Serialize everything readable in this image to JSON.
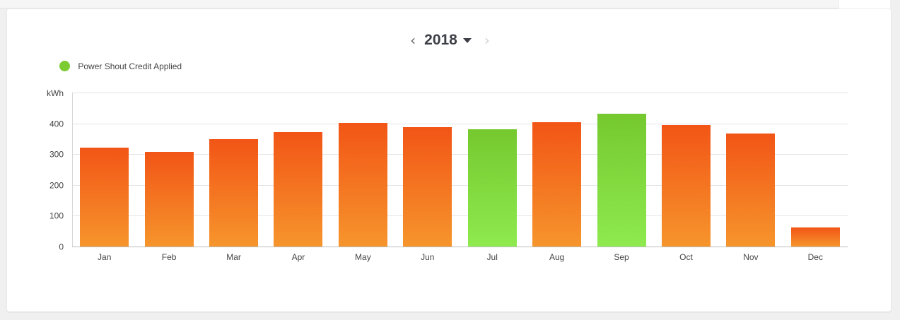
{
  "header": {
    "year": "2018",
    "prev_symbol": "‹",
    "next_symbol": "›"
  },
  "legend": {
    "label": "Power Shout Credit Applied",
    "color": "#7dcb33"
  },
  "colors": {
    "standard_top": "#f25516",
    "standard_bottom": "#f6952c",
    "credit_top": "#75c92f",
    "credit_bottom": "#8eea4e",
    "grid": "#e4e4e4",
    "axis_text": "#444444"
  },
  "chart_data": {
    "type": "bar",
    "ylabel": "kWh",
    "ylim": [
      0,
      500
    ],
    "yticks": [
      0,
      100,
      200,
      300,
      400
    ],
    "categories": [
      "Jan",
      "Feb",
      "Mar",
      "Apr",
      "May",
      "Jun",
      "Jul",
      "Aug",
      "Sep",
      "Oct",
      "Nov",
      "Dec"
    ],
    "values": [
      321,
      307,
      349,
      372,
      402,
      388,
      381,
      404,
      432,
      395,
      366,
      61
    ],
    "power_shout_credit_applied": [
      false,
      false,
      false,
      false,
      false,
      false,
      true,
      false,
      true,
      false,
      false,
      false
    ],
    "grid": true,
    "legend_position": "top-left"
  }
}
